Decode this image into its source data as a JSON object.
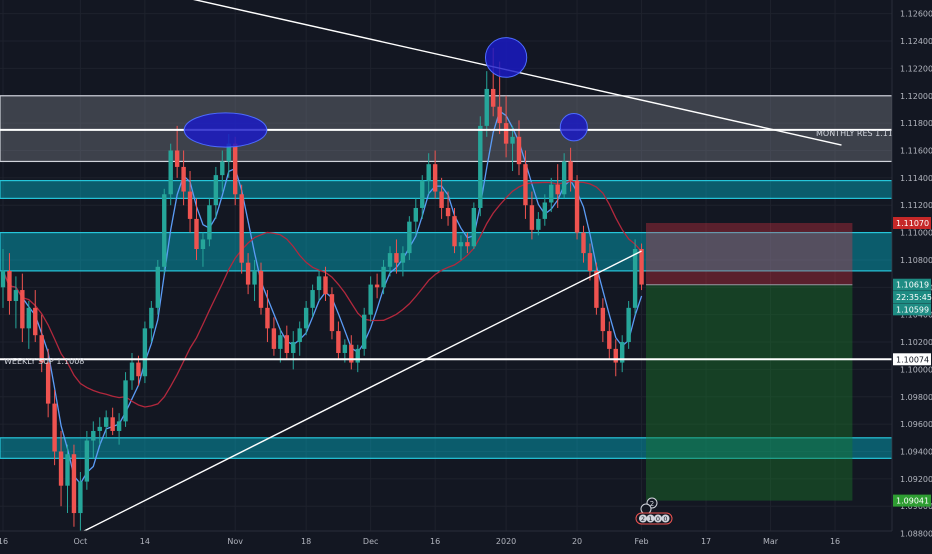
{
  "chart_data": {
    "type": "candlestick",
    "instrument_hint": "EUR/USD daily",
    "x_axis": {
      "ticks": [
        {
          "label": "16",
          "index": 0
        },
        {
          "label": "Oct",
          "index": 12
        },
        {
          "label": "14",
          "index": 22
        },
        {
          "label": "Nov",
          "index": 36
        },
        {
          "label": "18",
          "index": 47
        },
        {
          "label": "Dec",
          "index": 57
        },
        {
          "label": "16",
          "index": 67
        },
        {
          "label": "2020",
          "index": 78
        },
        {
          "label": "20",
          "index": 89
        },
        {
          "label": "Feb",
          "index": 99
        },
        {
          "label": "17",
          "index": 109
        },
        {
          "label": "Mar",
          "index": 119
        },
        {
          "label": "16",
          "index": 129
        }
      ]
    },
    "y_axis": {
      "range": [
        1.0868,
        1.127
      ],
      "ticks": [
        "1.12600",
        "1.12400",
        "1.12200",
        "1.12000",
        "1.11800",
        "1.11600",
        "1.11400",
        "1.11200",
        "1.11000",
        "1.10800",
        "1.10600",
        "1.10400",
        "1.10200",
        "1.10000",
        "1.09800",
        "1.09600",
        "1.09400",
        "1.09200",
        "1.09000",
        "1.08800"
      ]
    },
    "candles": [
      {
        "o": 1.106,
        "h": 1.1088,
        "l": 1.1045,
        "c": 1.1072
      },
      {
        "o": 1.1072,
        "h": 1.1085,
        "l": 1.104,
        "c": 1.105
      },
      {
        "o": 1.105,
        "h": 1.1068,
        "l": 1.103,
        "c": 1.1058
      },
      {
        "o": 1.1058,
        "h": 1.107,
        "l": 1.102,
        "c": 1.103
      },
      {
        "o": 1.103,
        "h": 1.105,
        "l": 1.1015,
        "c": 1.1045
      },
      {
        "o": 1.1045,
        "h": 1.1058,
        "l": 1.102,
        "c": 1.1025
      },
      {
        "o": 1.1025,
        "h": 1.104,
        "l": 1.0998,
        "c": 1.1005
      },
      {
        "o": 1.1005,
        "h": 1.1015,
        "l": 1.0965,
        "c": 1.0975
      },
      {
        "o": 1.0975,
        "h": 1.0985,
        "l": 1.093,
        "c": 1.094
      },
      {
        "o": 1.094,
        "h": 1.0955,
        "l": 1.09,
        "c": 1.0915
      },
      {
        "o": 1.0915,
        "h": 1.0945,
        "l": 1.0895,
        "c": 1.0938
      },
      {
        "o": 1.0938,
        "h": 1.0945,
        "l": 1.0885,
        "c": 1.0895
      },
      {
        "o": 1.0895,
        "h": 1.0925,
        "l": 1.0878,
        "c": 1.0918
      },
      {
        "o": 1.0918,
        "h": 1.0955,
        "l": 1.0912,
        "c": 1.0948
      },
      {
        "o": 1.0948,
        "h": 1.0962,
        "l": 1.0935,
        "c": 1.0955
      },
      {
        "o": 1.0955,
        "h": 1.0965,
        "l": 1.0945,
        "c": 1.0958
      },
      {
        "o": 1.0958,
        "h": 1.097,
        "l": 1.095,
        "c": 1.0965
      },
      {
        "o": 1.0965,
        "h": 1.0972,
        "l": 1.0952,
        "c": 1.0955
      },
      {
        "o": 1.0955,
        "h": 1.0968,
        "l": 1.0945,
        "c": 1.0962
      },
      {
        "o": 1.0962,
        "h": 1.0998,
        "l": 1.0958,
        "c": 1.0992
      },
      {
        "o": 1.0992,
        "h": 1.1012,
        "l": 1.0985,
        "c": 1.1005
      },
      {
        "o": 1.1005,
        "h": 1.101,
        "l": 1.0988,
        "c": 1.0995
      },
      {
        "o": 1.0995,
        "h": 1.1035,
        "l": 1.099,
        "c": 1.103
      },
      {
        "o": 1.103,
        "h": 1.105,
        "l": 1.102,
        "c": 1.1045
      },
      {
        "o": 1.1045,
        "h": 1.108,
        "l": 1.104,
        "c": 1.1075
      },
      {
        "o": 1.1075,
        "h": 1.1132,
        "l": 1.107,
        "c": 1.1128
      },
      {
        "o": 1.1128,
        "h": 1.1165,
        "l": 1.112,
        "c": 1.116
      },
      {
        "o": 1.116,
        "h": 1.1178,
        "l": 1.114,
        "c": 1.1148
      },
      {
        "o": 1.1148,
        "h": 1.116,
        "l": 1.112,
        "c": 1.113
      },
      {
        "o": 1.113,
        "h": 1.1145,
        "l": 1.11,
        "c": 1.111
      },
      {
        "o": 1.111,
        "h": 1.1125,
        "l": 1.108,
        "c": 1.1088
      },
      {
        "o": 1.1088,
        "h": 1.11,
        "l": 1.1075,
        "c": 1.1095
      },
      {
        "o": 1.1095,
        "h": 1.1125,
        "l": 1.109,
        "c": 1.112
      },
      {
        "o": 1.112,
        "h": 1.1148,
        "l": 1.111,
        "c": 1.1142
      },
      {
        "o": 1.1142,
        "h": 1.116,
        "l": 1.113,
        "c": 1.1152
      },
      {
        "o": 1.1152,
        "h": 1.1172,
        "l": 1.114,
        "c": 1.1165
      },
      {
        "o": 1.1165,
        "h": 1.117,
        "l": 1.112,
        "c": 1.1128
      },
      {
        "o": 1.1128,
        "h": 1.1135,
        "l": 1.107,
        "c": 1.1078
      },
      {
        "o": 1.1078,
        "h": 1.1085,
        "l": 1.1055,
        "c": 1.1062
      },
      {
        "o": 1.1062,
        "h": 1.108,
        "l": 1.105,
        "c": 1.1072
      },
      {
        "o": 1.1072,
        "h": 1.1078,
        "l": 1.104,
        "c": 1.1045
      },
      {
        "o": 1.1045,
        "h": 1.1058,
        "l": 1.102,
        "c": 1.103
      },
      {
        "o": 1.103,
        "h": 1.1038,
        "l": 1.101,
        "c": 1.1015
      },
      {
        "o": 1.1015,
        "h": 1.103,
        "l": 1.1005,
        "c": 1.1025
      },
      {
        "o": 1.1025,
        "h": 1.1032,
        "l": 1.1008,
        "c": 1.1012
      },
      {
        "o": 1.1012,
        "h": 1.1028,
        "l": 1.1,
        "c": 1.102
      },
      {
        "o": 1.102,
        "h": 1.1035,
        "l": 1.101,
        "c": 1.103
      },
      {
        "o": 1.103,
        "h": 1.105,
        "l": 1.1025,
        "c": 1.1045
      },
      {
        "o": 1.1045,
        "h": 1.1062,
        "l": 1.1038,
        "c": 1.1058
      },
      {
        "o": 1.1058,
        "h": 1.1072,
        "l": 1.105,
        "c": 1.1068
      },
      {
        "o": 1.1068,
        "h": 1.1075,
        "l": 1.105,
        "c": 1.1055
      },
      {
        "o": 1.1055,
        "h": 1.106,
        "l": 1.1022,
        "c": 1.1028
      },
      {
        "o": 1.1028,
        "h": 1.1035,
        "l": 1.1008,
        "c": 1.1012
      },
      {
        "o": 1.1012,
        "h": 1.1022,
        "l": 1.1005,
        "c": 1.1018
      },
      {
        "o": 1.1018,
        "h": 1.1025,
        "l": 1.1,
        "c": 1.1005
      },
      {
        "o": 1.1005,
        "h": 1.1018,
        "l": 1.0998,
        "c": 1.1015
      },
      {
        "o": 1.1015,
        "h": 1.1045,
        "l": 1.101,
        "c": 1.104
      },
      {
        "o": 1.104,
        "h": 1.1068,
        "l": 1.1035,
        "c": 1.1062
      },
      {
        "o": 1.1062,
        "h": 1.107,
        "l": 1.1052,
        "c": 1.106
      },
      {
        "o": 1.106,
        "h": 1.108,
        "l": 1.1055,
        "c": 1.1075
      },
      {
        "o": 1.1075,
        "h": 1.109,
        "l": 1.1068,
        "c": 1.1085
      },
      {
        "o": 1.1085,
        "h": 1.1095,
        "l": 1.107,
        "c": 1.1078
      },
      {
        "o": 1.1078,
        "h": 1.109,
        "l": 1.1068,
        "c": 1.1085
      },
      {
        "o": 1.1085,
        "h": 1.1112,
        "l": 1.108,
        "c": 1.1108
      },
      {
        "o": 1.1108,
        "h": 1.1125,
        "l": 1.1098,
        "c": 1.1118
      },
      {
        "o": 1.1118,
        "h": 1.1142,
        "l": 1.111,
        "c": 1.1138
      },
      {
        "o": 1.1138,
        "h": 1.1158,
        "l": 1.1128,
        "c": 1.115
      },
      {
        "o": 1.115,
        "h": 1.116,
        "l": 1.1125,
        "c": 1.113
      },
      {
        "o": 1.113,
        "h": 1.114,
        "l": 1.111,
        "c": 1.1118
      },
      {
        "o": 1.1118,
        "h": 1.113,
        "l": 1.1105,
        "c": 1.1112
      },
      {
        "o": 1.1112,
        "h": 1.1118,
        "l": 1.1085,
        "c": 1.109
      },
      {
        "o": 1.109,
        "h": 1.1098,
        "l": 1.108,
        "c": 1.1093
      },
      {
        "o": 1.1093,
        "h": 1.11,
        "l": 1.1085,
        "c": 1.109
      },
      {
        "o": 1.109,
        "h": 1.1122,
        "l": 1.1088,
        "c": 1.1118
      },
      {
        "o": 1.1118,
        "h": 1.1185,
        "l": 1.1112,
        "c": 1.1178
      },
      {
        "o": 1.1178,
        "h": 1.1218,
        "l": 1.117,
        "c": 1.1205
      },
      {
        "o": 1.1205,
        "h": 1.1235,
        "l": 1.1185,
        "c": 1.1192
      },
      {
        "o": 1.1192,
        "h": 1.1225,
        "l": 1.1172,
        "c": 1.118
      },
      {
        "o": 1.118,
        "h": 1.12,
        "l": 1.1155,
        "c": 1.1165
      },
      {
        "o": 1.1165,
        "h": 1.1178,
        "l": 1.1145,
        "c": 1.117
      },
      {
        "o": 1.117,
        "h": 1.1182,
        "l": 1.1142,
        "c": 1.115
      },
      {
        "o": 1.115,
        "h": 1.116,
        "l": 1.111,
        "c": 1.112
      },
      {
        "o": 1.112,
        "h": 1.113,
        "l": 1.1095,
        "c": 1.1102
      },
      {
        "o": 1.1102,
        "h": 1.1115,
        "l": 1.1098,
        "c": 1.111
      },
      {
        "o": 1.111,
        "h": 1.1128,
        "l": 1.1105,
        "c": 1.1122
      },
      {
        "o": 1.1122,
        "h": 1.114,
        "l": 1.1115,
        "c": 1.1135
      },
      {
        "o": 1.1135,
        "h": 1.115,
        "l": 1.1118,
        "c": 1.1128
      },
      {
        "o": 1.1128,
        "h": 1.1158,
        "l": 1.1125,
        "c": 1.1152
      },
      {
        "o": 1.1152,
        "h": 1.1162,
        "l": 1.113,
        "c": 1.1138
      },
      {
        "o": 1.1138,
        "h": 1.1142,
        "l": 1.1095,
        "c": 1.11
      },
      {
        "o": 1.11,
        "h": 1.1105,
        "l": 1.1078,
        "c": 1.1085
      },
      {
        "o": 1.1085,
        "h": 1.1092,
        "l": 1.1065,
        "c": 1.1072
      },
      {
        "o": 1.1072,
        "h": 1.1078,
        "l": 1.104,
        "c": 1.1045
      },
      {
        "o": 1.1045,
        "h": 1.1052,
        "l": 1.102,
        "c": 1.1028
      },
      {
        "o": 1.1028,
        "h": 1.1035,
        "l": 1.1008,
        "c": 1.1015
      },
      {
        "o": 1.1015,
        "h": 1.1022,
        "l": 1.0995,
        "c": 1.1005
      },
      {
        "o": 1.1005,
        "h": 1.1025,
        "l": 1.0998,
        "c": 1.102
      },
      {
        "o": 1.102,
        "h": 1.105,
        "l": 1.1015,
        "c": 1.1045
      },
      {
        "o": 1.1045,
        "h": 1.1095,
        "l": 1.104,
        "c": 1.1088
      },
      {
        "o": 1.1088,
        "h": 1.1092,
        "l": 1.1058,
        "c": 1.1062
      }
    ],
    "moving_averages": [
      {
        "name": "fast",
        "color": "#5b9cf6"
      },
      {
        "name": "slow",
        "color": "#b2283d"
      }
    ],
    "annotations": {
      "monthly_res_label": "MONTHLY RES 1.1175",
      "weekly_sup_label": "WEEKLY SUP 1.1008"
    },
    "zones": [
      {
        "type": "resistance-grey",
        "from": 1.1152,
        "to": 1.12
      },
      {
        "type": "resistance-teal",
        "from": 1.1125,
        "to": 1.1138
      },
      {
        "type": "supply-teal",
        "from": 1.1072,
        "to": 1.11
      },
      {
        "type": "demand-teal",
        "from": 1.0935,
        "to": 1.095
      }
    ],
    "horizontal_lines": [
      {
        "name": "monthly-res-line",
        "price": 1.11751
      },
      {
        "name": "weekly-sup-line",
        "price": 1.10074
      }
    ],
    "trendlines": [
      {
        "name": "descending-trendline",
        "from": {
          "index": 29,
          "price": 1.1271
        },
        "to": {
          "index": 130,
          "price": 1.1164
        }
      },
      {
        "name": "ascending-trendline",
        "from": {
          "index": 12,
          "price": 1.08805
        },
        "to": {
          "index": 99,
          "price": 1.10865
        }
      }
    ],
    "highlight_ellipses": [
      {
        "name": "double-top-ellipse",
        "index": 34.5,
        "price": 1.1175,
        "span_index": 6.4,
        "span_price": 0.00125
      },
      {
        "name": "swing-high-ellipse",
        "index": 78,
        "price": 1.1228,
        "span_index": 3.2,
        "span_price": 0.00145
      },
      {
        "name": "lower-high-ellipse",
        "index": 88.5,
        "price": 1.1177,
        "span_index": 2.1,
        "span_price": 0.001
      }
    ],
    "trade_setup": {
      "entry": 1.10619,
      "stop_loss": 1.1107,
      "take_profit": 1.09041,
      "start_index": 100,
      "end_index": 132
    },
    "price_labels": [
      {
        "name": "stop-loss-price-label",
        "text": "1.11070",
        "price": 1.1107,
        "color": "#c62828"
      },
      {
        "name": "current-price-label",
        "text": "1.10619",
        "price": 1.10619,
        "color": "#1e8c83"
      },
      {
        "name": "countdown-label",
        "text": "22:35:45",
        "price": 1.10529,
        "color": "#1e8c83"
      },
      {
        "name": "last-close-label",
        "text": "1.10599",
        "price": 1.10439,
        "color": "#1e8c83"
      },
      {
        "name": "weekly-sup-price-label",
        "text": "1.10074",
        "price": 1.10074,
        "color": "#ffffff"
      },
      {
        "name": "take-profit-price-label",
        "text": "1.09041",
        "price": 1.09041,
        "color": "#2e9d32"
      }
    ],
    "events": {
      "top_label": "2",
      "bottom_labels": [
        "2",
        "1",
        "0",
        "0"
      ]
    }
  }
}
